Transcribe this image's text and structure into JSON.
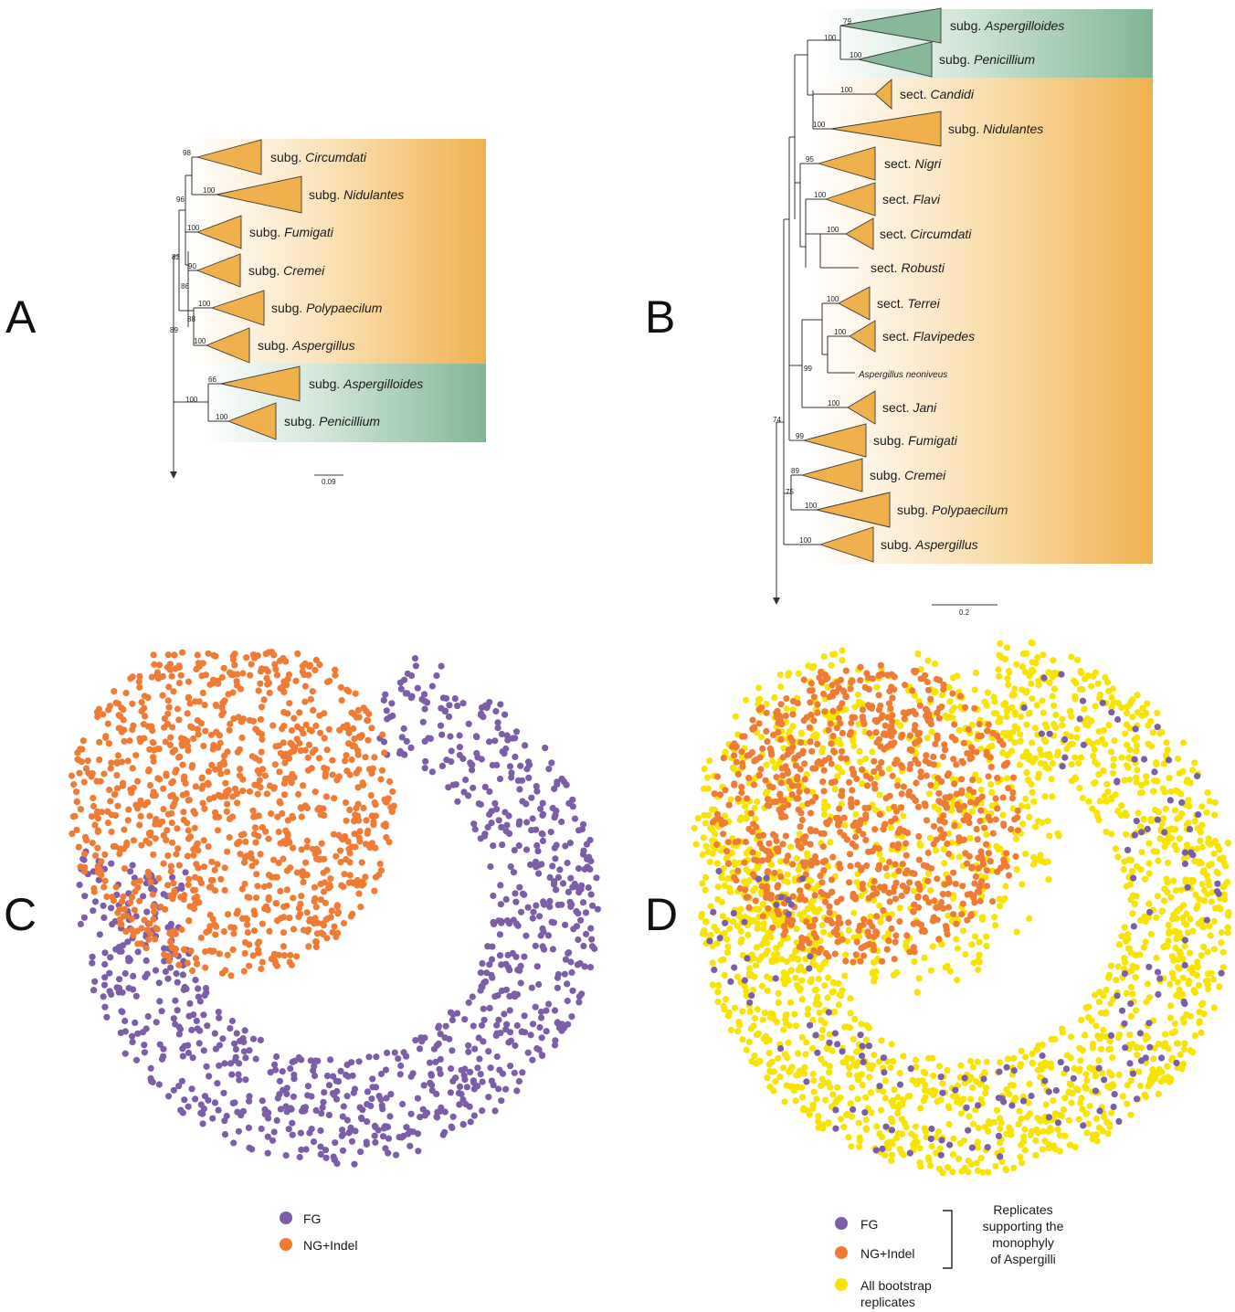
{
  "panels": {
    "A": "A",
    "B": "B",
    "C": "C",
    "D": "D"
  },
  "colors": {
    "orange_clade": "#f0b14d",
    "orange_dark": "#e8a23a",
    "green_clade": "#86b99a",
    "green_dark": "#6fa889",
    "fg_purple": "#7b5ea7",
    "ng_orange": "#ef7b34",
    "bootstrap_yellow": "#f7e400"
  },
  "treeA": {
    "scale_label": "0.09",
    "clades": [
      {
        "prefix": "subg. ",
        "name": "Circumdati",
        "bootstrap": "98"
      },
      {
        "prefix": "subg. ",
        "name": "Nidulantes",
        "bootstrap": "100"
      },
      {
        "prefix": "subg. ",
        "name": "Fumigati",
        "bootstrap": "100"
      },
      {
        "prefix": "subg. ",
        "name": "Cremei",
        "bootstrap": "90"
      },
      {
        "prefix": "subg. ",
        "name": "Polypaecilum",
        "bootstrap": "100"
      },
      {
        "prefix": "subg. ",
        "name": "Aspergillus",
        "bootstrap": "100"
      },
      {
        "prefix": "subg. ",
        "name": "Aspergilloides",
        "bootstrap": "66"
      },
      {
        "prefix": "subg. ",
        "name": "Penicillium",
        "bootstrap": "100"
      }
    ],
    "internal_bootstraps": [
      "96",
      "82",
      "86",
      "88",
      "89",
      "100"
    ]
  },
  "treeB": {
    "scale_label": "0.2",
    "clades": [
      {
        "prefix": "subg. ",
        "name": "Aspergilloides",
        "bootstrap": "79"
      },
      {
        "prefix": "subg. ",
        "name": "Penicillium",
        "bootstrap": "100"
      },
      {
        "prefix": "sect. ",
        "name": "Candidi",
        "bootstrap": "100"
      },
      {
        "prefix": "subg. ",
        "name": "Nidulantes",
        "bootstrap": "100"
      },
      {
        "prefix": "sect. ",
        "name": "Nigri",
        "bootstrap": "95"
      },
      {
        "prefix": "sect. ",
        "name": "Flavi",
        "bootstrap": "100"
      },
      {
        "prefix": "sect. ",
        "name": "Circumdati",
        "bootstrap": "100"
      },
      {
        "prefix": "sect. ",
        "name": "Robusti",
        "bootstrap": ""
      },
      {
        "prefix": "sect. ",
        "name": "Terrei",
        "bootstrap": "100"
      },
      {
        "prefix": "sect. ",
        "name": "Flavipedes",
        "bootstrap": "100"
      },
      {
        "prefix": "",
        "name": "Aspergillus neoniveus",
        "bootstrap": "99"
      },
      {
        "prefix": "sect. ",
        "name": "Jani",
        "bootstrap": "100"
      },
      {
        "prefix": "subg. ",
        "name": "Fumigati",
        "bootstrap": "99"
      },
      {
        "prefix": "subg. ",
        "name": "Cremei",
        "bootstrap": "89"
      },
      {
        "prefix": "subg. ",
        "name": "Polypaecilum",
        "bootstrap": "100"
      },
      {
        "prefix": "subg. ",
        "name": "Aspergillus",
        "bootstrap": "100"
      }
    ],
    "internal_bootstraps": [
      "100",
      "74",
      "75"
    ]
  },
  "legendC": {
    "fg": "FG",
    "ng": "NG+Indel"
  },
  "legendD": {
    "fg": "FG",
    "ng": "NG+Indel",
    "all_line1": "All bootstrap",
    "all_line2": "replicates",
    "support_line1": "Replicates",
    "support_line2": "supporting the",
    "support_line3": "monophyly",
    "support_line4": "of Aspergilli"
  }
}
